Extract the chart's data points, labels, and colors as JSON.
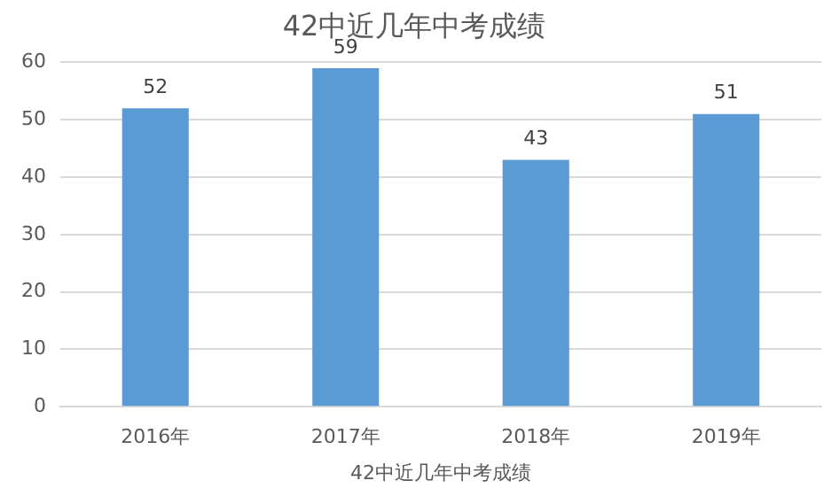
{
  "chart_data": {
    "type": "bar",
    "title": "42中近几年中考成绩",
    "xlabel": "42中近几年中考成绩",
    "categories": [
      "2016年",
      "2017年",
      "2018年",
      "2019年"
    ],
    "values": [
      52,
      59,
      43,
      51
    ],
    "color": "#5b9bd5",
    "ylim": [
      0,
      60
    ],
    "yticks": [
      0,
      10,
      20,
      30,
      40,
      50,
      60
    ],
    "grid": "y",
    "data_labels": true
  }
}
